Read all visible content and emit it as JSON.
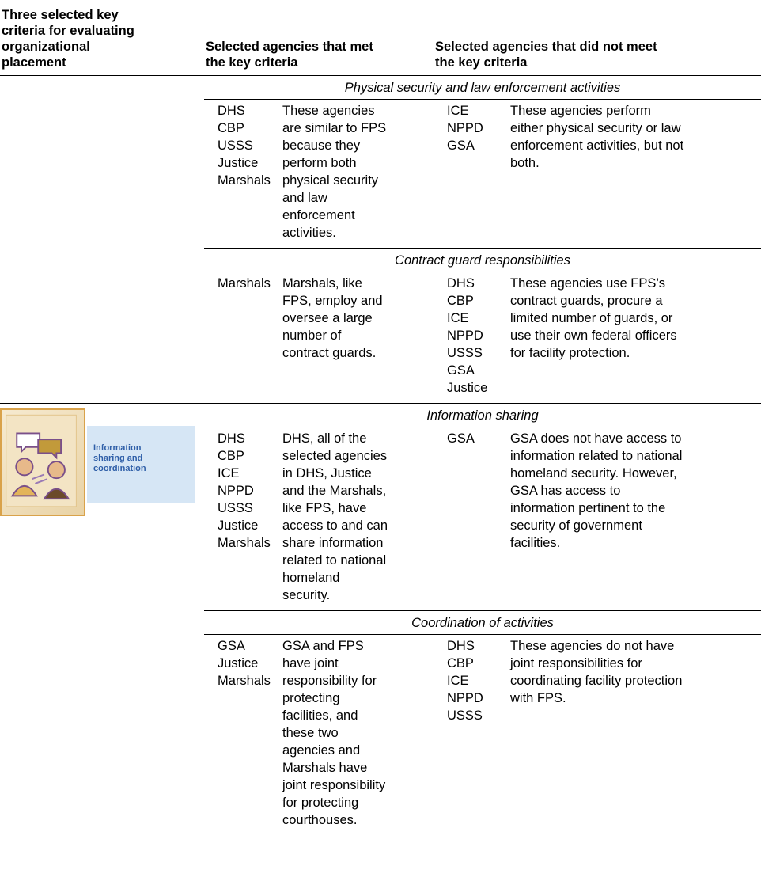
{
  "header": {
    "criteria": [
      "Three selected key",
      "criteria for evaluating",
      "organizational",
      "placement"
    ],
    "met": [
      "Selected agencies that met",
      "the key criteria"
    ],
    "not_met": [
      "Selected agencies that did not meet",
      "the key criteria"
    ]
  },
  "icon_label": [
    "Information",
    "sharing and",
    "coordination"
  ],
  "sections": [
    {
      "title": "Physical security and law enforcement activities",
      "met_agencies": [
        "DHS",
        "CBP",
        "USSS",
        "Justice",
        "Marshals"
      ],
      "met_text": [
        "These agencies",
        "are similar to FPS",
        "because they",
        "perform both",
        "physical security",
        "and law",
        "enforcement",
        "activities."
      ],
      "not_met_agencies": [
        "ICE",
        "NPPD",
        "GSA"
      ],
      "not_met_text": [
        "These agencies perform",
        "either physical security or law",
        "enforcement activities, but not",
        "both."
      ]
    },
    {
      "title": "Contract guard responsibilities",
      "met_agencies": [
        "Marshals"
      ],
      "met_text": [
        "Marshals, like",
        "FPS, employ and",
        "oversee a large",
        "number of",
        "contract guards."
      ],
      "not_met_agencies": [
        "DHS",
        "CBP",
        "ICE",
        "NPPD",
        "USSS",
        "GSA",
        "Justice"
      ],
      "not_met_text": [
        "These agencies use FPS’s",
        "contract guards, procure a",
        "limited number of guards, or",
        "use their own federal officers",
        "for facility protection."
      ]
    },
    {
      "title": "Information sharing",
      "met_agencies": [
        "DHS",
        "CBP",
        "ICE",
        "NPPD",
        "USSS",
        "Justice",
        "Marshals"
      ],
      "met_text": [
        "DHS, all of the",
        "selected agencies",
        "in DHS, Justice",
        "and the Marshals,",
        "like FPS, have",
        "access to and can",
        "share information",
        "related to national",
        "homeland",
        "security."
      ],
      "not_met_agencies": [
        "GSA"
      ],
      "not_met_text": [
        "GSA does not have access to",
        "information related to national",
        "homeland security. However,",
        "GSA has access to",
        "information pertinent to the",
        "security of government",
        "facilities."
      ]
    },
    {
      "title": "Coordination of activities",
      "met_agencies": [
        "GSA",
        "Justice",
        "Marshals"
      ],
      "met_text": [
        "GSA and FPS",
        "have joint",
        "responsibility for",
        "protecting",
        "facilities, and",
        "these two",
        "agencies and",
        "Marshals have",
        "joint responsibility",
        "for protecting",
        "courthouses."
      ],
      "not_met_agencies": [
        "DHS",
        "CBP",
        "ICE",
        "NPPD",
        "USSS"
      ],
      "not_met_text": [
        "These agencies do not have",
        "joint responsibilities for",
        "coordinating facility protection",
        "with FPS."
      ]
    }
  ]
}
